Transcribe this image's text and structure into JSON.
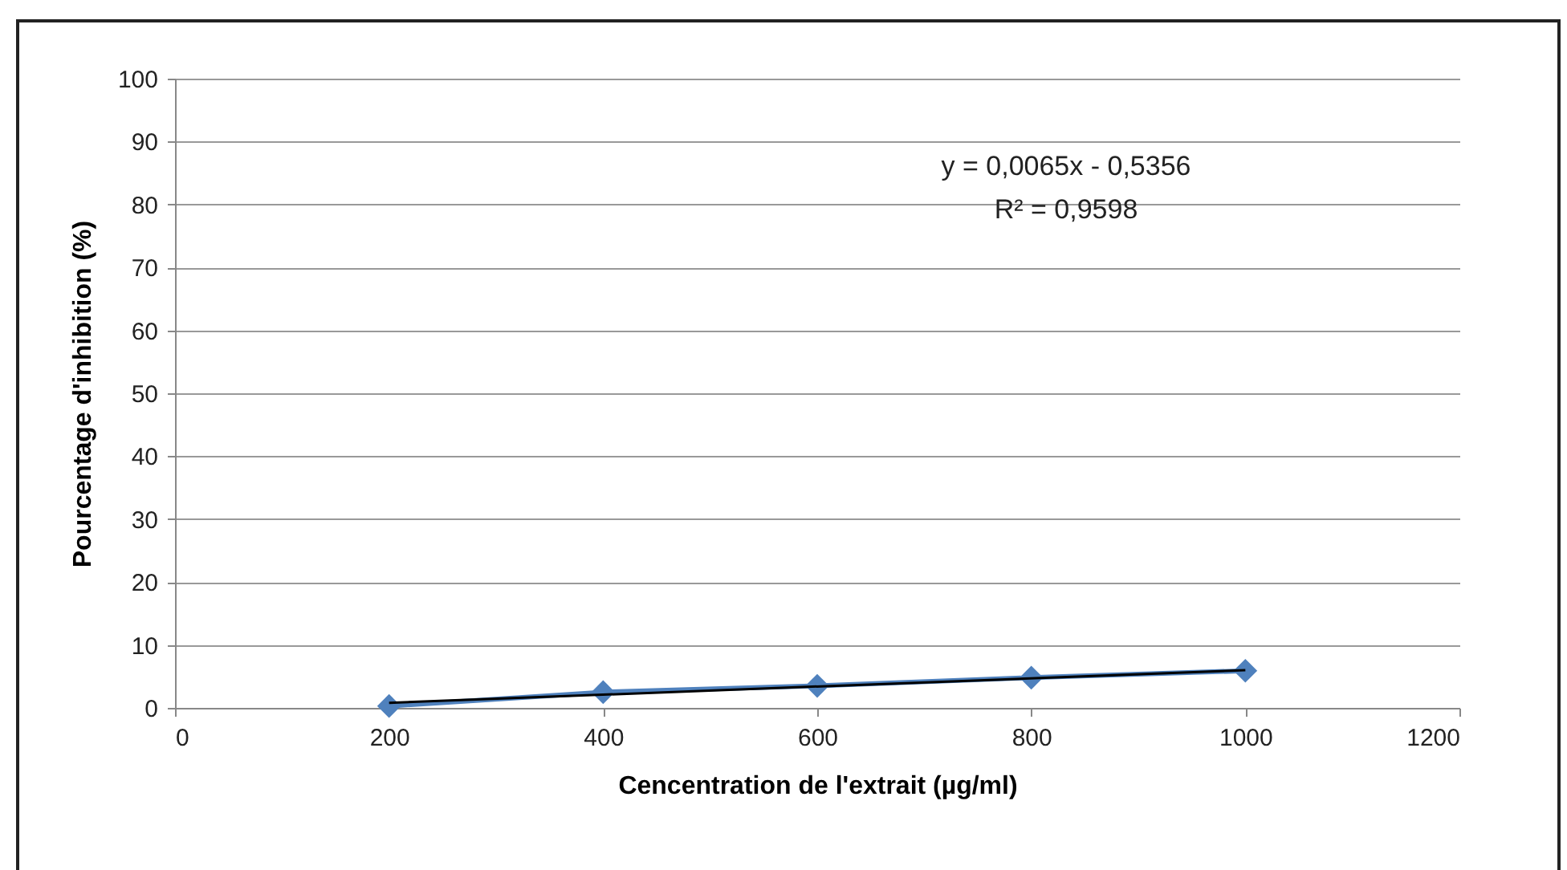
{
  "chart_data": {
    "type": "line",
    "xlabel": "Cencentration de l'extrait (µg/ml)",
    "ylabel": "Pourcentage d'inhibition (%)",
    "x": [
      200,
      400,
      600,
      800,
      1000
    ],
    "series": [
      {
        "color": "#4f81bd",
        "marker": "diamond",
        "values": [
          0.3,
          2.5,
          3.5,
          4.8,
          5.9
        ]
      },
      {
        "color": "#000000",
        "marker": "none",
        "x": [
          200,
          1000
        ],
        "values": [
          0.8,
          6.0
        ]
      }
    ],
    "annotations": [
      "y = 0,0065x - 0,5356",
      "R² = 0,9598"
    ],
    "xlim": [
      0,
      1200
    ],
    "xticks": [
      0,
      200,
      400,
      600,
      800,
      1000,
      1200
    ],
    "ylim": [
      0,
      100
    ],
    "yticks": [
      0,
      10,
      20,
      30,
      40,
      50,
      60,
      70,
      80,
      90,
      100
    ],
    "grid": "y"
  }
}
